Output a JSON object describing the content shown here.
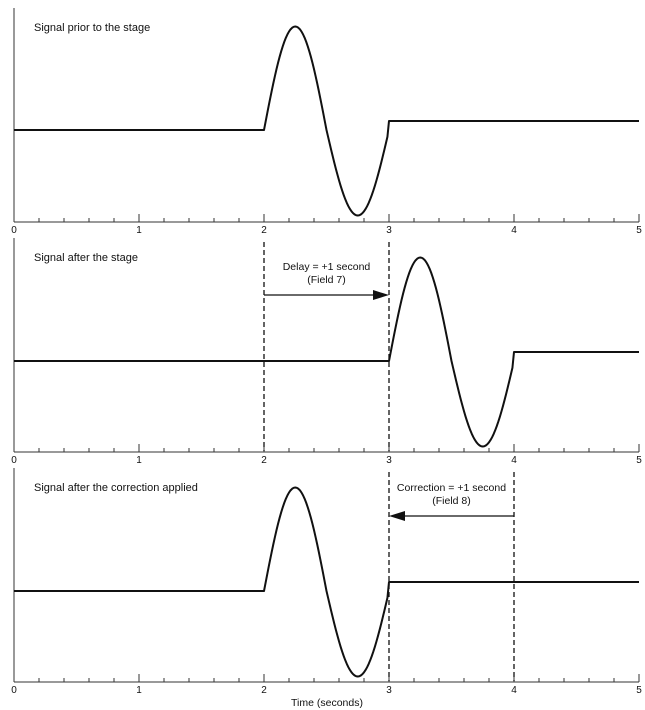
{
  "chart_data": {
    "type": "line",
    "xlabel": "Time (seconds)",
    "xlim": [
      0,
      5
    ],
    "x_tick_labels": [
      "0",
      "1",
      "2",
      "3",
      "4",
      "5"
    ],
    "panels": [
      {
        "title": "Signal prior to the stage",
        "baseline_before": 0,
        "baseline_after": 0.1,
        "pulse": {
          "start": 2,
          "end": 3,
          "peak_time": 2.25,
          "peak": 1.15,
          "trough_time": 2.75,
          "trough": -0.95
        }
      },
      {
        "title": "Signal after the stage",
        "baseline_before": 0,
        "baseline_after": 0.1,
        "pulse": {
          "start": 3,
          "end": 4,
          "peak_time": 3.25,
          "peak": 1.15,
          "trough_time": 3.75,
          "trough": -0.95
        },
        "annotation": {
          "line1": "Delay = +1 second",
          "line2": "(Field 7)",
          "from": 2,
          "to": 3,
          "direction": "right",
          "markers": [
            2,
            3
          ]
        }
      },
      {
        "title": "Signal after the correction applied",
        "baseline_before": 0,
        "baseline_after": 0.1,
        "pulse": {
          "start": 2,
          "end": 3,
          "peak_time": 2.25,
          "peak": 1.15,
          "trough_time": 2.75,
          "trough": -0.95
        },
        "annotation": {
          "line1": "Correction = +1 second",
          "line2": "(Field 8)",
          "from": 4,
          "to": 3,
          "direction": "left",
          "markers": [
            3,
            4
          ]
        }
      }
    ]
  }
}
